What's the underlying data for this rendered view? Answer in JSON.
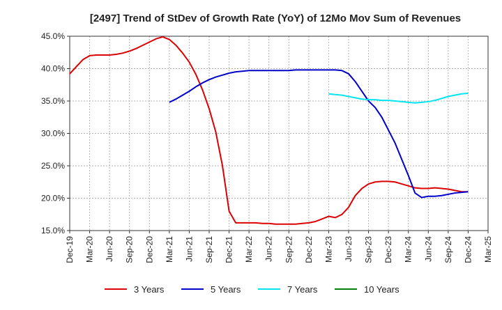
{
  "chart_data": {
    "type": "line",
    "title": "[2497]  Trend of StDev of Growth Rate (YoY) of 12Mo Mov Sum of Revenues",
    "xlabel": "",
    "ylabel": "",
    "ylim": [
      15,
      45
    ],
    "y_ticks": [
      15,
      20,
      25,
      30,
      35,
      40,
      45
    ],
    "y_tick_labels": [
      "15.0%",
      "20.0%",
      "25.0%",
      "30.0%",
      "35.0%",
      "40.0%",
      "45.0%"
    ],
    "x_range": [
      0,
      63
    ],
    "x_ticks": [
      0,
      3,
      6,
      9,
      12,
      15,
      18,
      21,
      24,
      27,
      30,
      33,
      36,
      39,
      42,
      45,
      48,
      51,
      54,
      57,
      60,
      63
    ],
    "x_tick_labels": [
      "Dec-19",
      "Mar-20",
      "Jun-20",
      "Sep-20",
      "Dec-20",
      "Mar-21",
      "Jun-21",
      "Sep-21",
      "Dec-21",
      "Mar-22",
      "Jun-22",
      "Sep-22",
      "Dec-22",
      "Mar-23",
      "Jun-23",
      "Sep-23",
      "Dec-23",
      "Mar-24",
      "Jun-24",
      "Sep-24",
      "Dec-24",
      "Mar-25"
    ],
    "grid": true,
    "legend_position": "bottom",
    "series": [
      {
        "name": "3 Years",
        "color": "#dd0000",
        "x": [
          0,
          1,
          2,
          3,
          4,
          5,
          6,
          7,
          8,
          9,
          10,
          11,
          12,
          13,
          14,
          15,
          16,
          17,
          18,
          19,
          20,
          21,
          22,
          23,
          24,
          25,
          26,
          27,
          28,
          29,
          30,
          31,
          32,
          33,
          34,
          35,
          36,
          37,
          38,
          39,
          40,
          41,
          42,
          43,
          44,
          45,
          46,
          47,
          48,
          49,
          50,
          51,
          52,
          53,
          54,
          55,
          56,
          57,
          58,
          59,
          60
        ],
        "values": [
          39.2,
          40.3,
          41.4,
          42.0,
          42.1,
          42.1,
          42.1,
          42.2,
          42.4,
          42.7,
          43.1,
          43.6,
          44.1,
          44.6,
          44.9,
          44.5,
          43.6,
          42.4,
          41.0,
          39.1,
          36.7,
          33.8,
          30.2,
          25.0,
          18.0,
          16.2,
          16.2,
          16.2,
          16.2,
          16.1,
          16.1,
          16.0,
          16.0,
          16.0,
          16.0,
          16.1,
          16.2,
          16.4,
          16.8,
          17.2,
          17.0,
          17.5,
          18.6,
          20.4,
          21.5,
          22.2,
          22.5,
          22.6,
          22.6,
          22.5,
          22.2,
          21.9,
          21.6,
          21.5,
          21.5,
          21.6,
          21.5,
          21.4,
          21.2,
          21.0,
          21.0
        ]
      },
      {
        "name": "5 Years",
        "color": "#0000cc",
        "x": [
          15,
          16,
          17,
          18,
          19,
          20,
          21,
          22,
          23,
          24,
          25,
          26,
          27,
          28,
          29,
          30,
          31,
          32,
          33,
          34,
          35,
          36,
          37,
          38,
          39,
          40,
          41,
          42,
          43,
          44,
          45,
          46,
          47,
          48,
          49,
          50,
          51,
          52,
          53,
          54,
          55,
          56,
          57,
          58,
          59,
          60
        ],
        "values": [
          34.8,
          35.3,
          35.9,
          36.5,
          37.2,
          37.8,
          38.3,
          38.7,
          39.0,
          39.3,
          39.5,
          39.6,
          39.7,
          39.7,
          39.7,
          39.7,
          39.7,
          39.7,
          39.7,
          39.8,
          39.8,
          39.8,
          39.8,
          39.8,
          39.8,
          39.8,
          39.7,
          39.2,
          38.0,
          36.5,
          35.0,
          34.0,
          32.5,
          30.5,
          28.5,
          26.0,
          23.5,
          20.8,
          20.1,
          20.3,
          20.3,
          20.4,
          20.6,
          20.8,
          20.9,
          21.0
        ]
      },
      {
        "name": "7 Years",
        "color": "#00e5ee",
        "x": [
          39,
          40,
          41,
          42,
          43,
          44,
          45,
          46,
          47,
          48,
          49,
          50,
          51,
          52,
          53,
          54,
          55,
          56,
          57,
          58,
          59,
          60
        ],
        "values": [
          36.1,
          36.0,
          35.9,
          35.7,
          35.5,
          35.3,
          35.2,
          35.2,
          35.1,
          35.1,
          35.0,
          34.9,
          34.8,
          34.7,
          34.8,
          34.9,
          35.1,
          35.4,
          35.7,
          35.9,
          36.1,
          36.2
        ]
      },
      {
        "name": "10 Years",
        "color": "#008000",
        "x": [],
        "values": []
      }
    ]
  }
}
